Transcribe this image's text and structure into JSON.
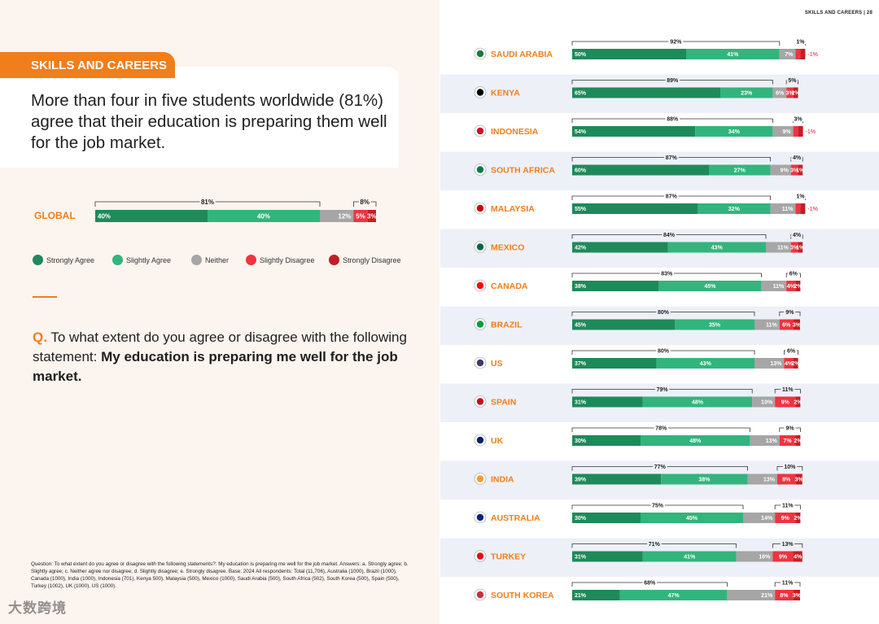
{
  "page": {
    "header": "SKILLS AND CAREERS | 28",
    "section_tag": "SKILLS AND CAREERS",
    "headline": "More than four in five students worldwide (81%) agree that their education is preparing them well for the job market.",
    "question_prefix": "Q.",
    "question_text": "To what extent do you agree or disagree with the following statement:",
    "question_statement": "My education is preparing me well for the job market.",
    "footnote": "Question: To what extent do you agree or disagree with the following statements?: My education is preparing me well for the job market. Answers: a. Strongly agree; b. Slightly agree; c. Neither agree nor disagree; d. Slightly disagree; e. Strongly disagree. Base: 2024 All respondents: Total (11,706), Australia (1000), Brazil (1000), Canada (1000), India (1000), Indonesia (701), Kenya 500), Malaysia (500), Mexico (1000), Saudi Arabia (500), South Africa (502), South Korea (500), Spain (500), Turkey (1002), UK (1000), US (1000).",
    "watermark": "大数跨境"
  },
  "legend": [
    {
      "label": "Strongly Agree",
      "color": "#1e8a5a"
    },
    {
      "label": "Slightly Agree",
      "color": "#31b57c"
    },
    {
      "label": "Neither",
      "color": "#a6a6a6"
    },
    {
      "label": "Slightly Disagree",
      "color": "#ef3340"
    },
    {
      "label": "Strongly Disagree",
      "color": "#c41e24"
    }
  ],
  "chart_data": {
    "type": "bar",
    "orientation": "horizontal-stacked",
    "title": "My education is preparing me well for the job market",
    "series_names": [
      "Strongly Agree",
      "Slightly Agree",
      "Neither",
      "Slightly Disagree",
      "Strongly Disagree"
    ],
    "global": {
      "name": "GLOBAL",
      "values": [
        40,
        40,
        12,
        5,
        3
      ],
      "agree": 81,
      "disagree": 8
    },
    "countries": [
      {
        "name": "SAUDI ARABIA",
        "flag": "saudi-flag-icon",
        "values": [
          50,
          41,
          7,
          1,
          1
        ],
        "agree": 92,
        "disagree": 1,
        "agree_label": "92",
        "disagree_label": "1"
      },
      {
        "name": "KENYA",
        "flag": "kenya-flag-icon",
        "values": [
          65,
          23,
          6,
          3,
          2
        ],
        "agree": 89,
        "disagree": 5,
        "agree_label": "89",
        "disagree_label": "5"
      },
      {
        "name": "INDONESIA",
        "flag": "indonesia-flag-icon",
        "values": [
          54,
          34,
          9,
          2,
          1
        ],
        "agree": 88,
        "disagree": 3,
        "agree_label": "88",
        "disagree_label": "3"
      },
      {
        "name": "SOUTH AFRICA",
        "flag": "south-africa-flag-icon",
        "values": [
          60,
          27,
          9,
          3,
          1
        ],
        "agree": 87,
        "disagree": 4,
        "agree_label": "87",
        "disagree_label": "4"
      },
      {
        "name": "MALAYSIA",
        "flag": "malaysia-flag-icon",
        "values": [
          55,
          32,
          11,
          1,
          1
        ],
        "agree": 87,
        "disagree": 1,
        "agree_label": "87",
        "disagree_label": "1"
      },
      {
        "name": "MEXICO",
        "flag": "mexico-flag-icon",
        "values": [
          42,
          43,
          11,
          3,
          1
        ],
        "agree": 84,
        "disagree": 4,
        "agree_label": "84",
        "disagree_label": "4"
      },
      {
        "name": "CANADA",
        "flag": "canada-flag-icon",
        "values": [
          38,
          45,
          11,
          4,
          2
        ],
        "agree": 83,
        "disagree": 6,
        "agree_label": "83",
        "disagree_label": "6"
      },
      {
        "name": "BRAZIL",
        "flag": "brazil-flag-icon",
        "values": [
          45,
          35,
          11,
          6,
          3
        ],
        "agree": 80,
        "disagree": 9,
        "agree_label": "80",
        "disagree_label": "9"
      },
      {
        "name": "US",
        "flag": "us-flag-icon",
        "values": [
          37,
          43,
          13,
          4,
          2
        ],
        "agree": 80,
        "disagree": 6,
        "agree_label": "80",
        "disagree_label": "6"
      },
      {
        "name": "SPAIN",
        "flag": "spain-flag-icon",
        "values": [
          31,
          48,
          10,
          9,
          2
        ],
        "agree": 79,
        "disagree": 11,
        "agree_label": "79",
        "disagree_label": "11"
      },
      {
        "name": "UK",
        "flag": "uk-flag-icon",
        "values": [
          30,
          48,
          13,
          7,
          2
        ],
        "agree": 78,
        "disagree": 9,
        "agree_label": "78",
        "disagree_label": "9"
      },
      {
        "name": "INDIA",
        "flag": "india-flag-icon",
        "values": [
          39,
          38,
          13,
          8,
          3
        ],
        "agree": 77,
        "disagree": 10,
        "agree_label": "77",
        "disagree_label": "10"
      },
      {
        "name": "AUSTRALIA",
        "flag": "australia-flag-icon",
        "values": [
          30,
          45,
          14,
          9,
          2
        ],
        "agree": 75,
        "disagree": 11,
        "agree_label": "75",
        "disagree_label": "11"
      },
      {
        "name": "TURKEY",
        "flag": "turkey-flag-icon",
        "values": [
          31,
          41,
          16,
          9,
          4
        ],
        "agree": 71,
        "disagree": 13,
        "agree_label": "71",
        "disagree_label": "13"
      },
      {
        "name": "SOUTH KOREA",
        "flag": "south-korea-flag-icon",
        "values": [
          21,
          47,
          21,
          8,
          3
        ],
        "agree": 68,
        "disagree": 11,
        "agree_label": "68",
        "disagree_label": "11"
      }
    ],
    "small_segment_labels": {
      "SAUDI ARABIA": [
        "1",
        "1"
      ],
      "INDONESIA": [
        "2",
        "1"
      ],
      "MALAYSIA": [
        "1",
        "1"
      ]
    },
    "unit": "%",
    "xlim": [
      0,
      100
    ]
  }
}
